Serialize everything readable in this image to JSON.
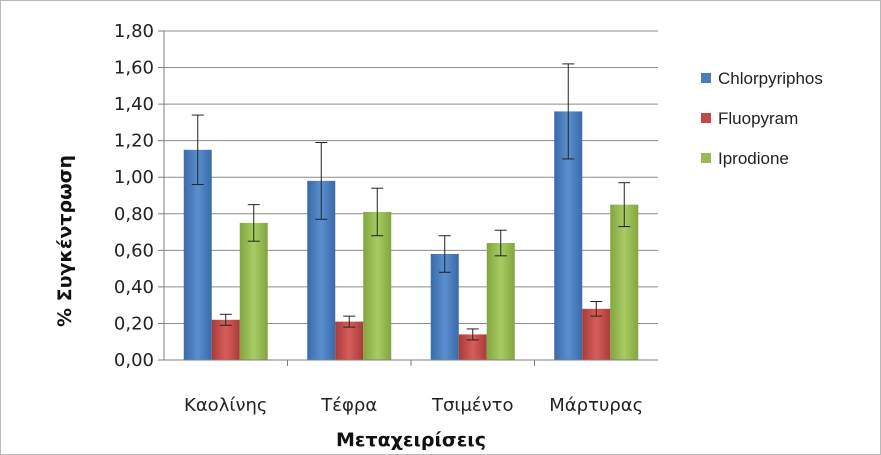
{
  "chart_data": {
    "type": "bar",
    "title": "",
    "xlabel": "Μεταχειρίσεις",
    "ylabel": "% Συγκέντρωση",
    "categories": [
      "Καολίνης",
      "Τέφρα",
      "Τσιμέντο",
      "Μάρτυρας"
    ],
    "ylim": [
      0,
      1.8
    ],
    "yticks": [
      "0,00",
      "0,20",
      "0,40",
      "0,60",
      "0,80",
      "1,00",
      "1,20",
      "1,40",
      "1,60",
      "1,80"
    ],
    "grid": true,
    "legend_position": "right",
    "series": [
      {
        "name": "Chlorpyriphos",
        "color": "#4a7ebb",
        "values": [
          1.15,
          0.98,
          0.58,
          1.36
        ],
        "errors": [
          0.19,
          0.21,
          0.1,
          0.26
        ]
      },
      {
        "name": "Fluopyram",
        "color": "#be4b48",
        "values": [
          0.22,
          0.21,
          0.14,
          0.28
        ],
        "errors": [
          0.03,
          0.03,
          0.03,
          0.04
        ]
      },
      {
        "name": "Iprodione",
        "color": "#98b954",
        "values": [
          0.75,
          0.81,
          0.64,
          0.85
        ],
        "errors": [
          0.1,
          0.13,
          0.07,
          0.12
        ]
      }
    ]
  }
}
